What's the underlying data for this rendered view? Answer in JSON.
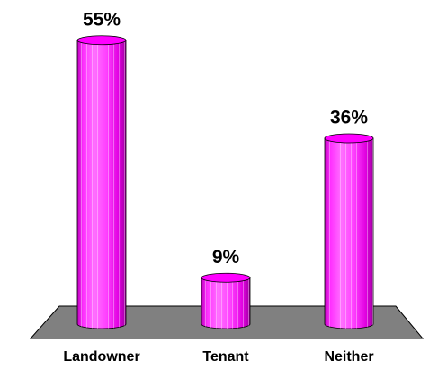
{
  "chart_data": {
    "type": "bar",
    "categories": [
      "Landowner",
      "Tenant",
      "Neither"
    ],
    "values": [
      55,
      9,
      36
    ],
    "value_labels": [
      "55%",
      "9%",
      "36%"
    ],
    "color": "#ff00ff"
  }
}
